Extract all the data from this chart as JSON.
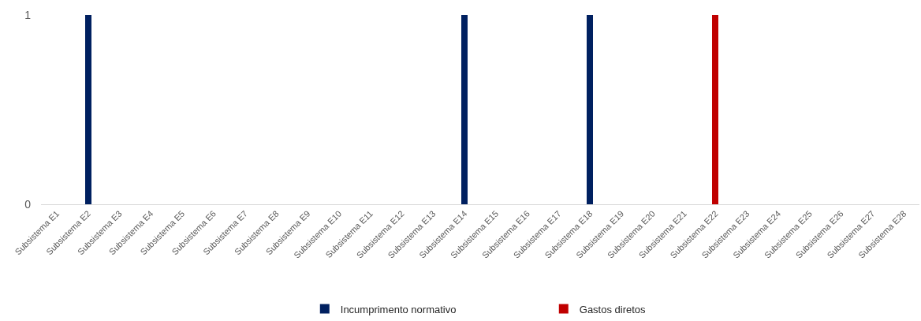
{
  "chart_data": {
    "type": "bar",
    "stacked": true,
    "legend": "bottom",
    "categories": [
      "Subsistema E1",
      "Subsistema E2",
      "Subsistema E3",
      "Subsistema E4",
      "Subsistema E5",
      "Subsistema E6",
      "Subsistema E7",
      "Subsistema E8",
      "Subsistema E9",
      "Subsistema E10",
      "Subsistema E11",
      "Subsistema E12",
      "Subsistema E13",
      "Subsistema E14",
      "Subsistema E15",
      "Subsistema E16",
      "Subsistema E17",
      "Subsistema E18",
      "Subsistema E19",
      "Subsistema E20",
      "Subsistema E21",
      "Subsistema E22",
      "Subsistema E23",
      "Subsistema E24",
      "Subsistema E25",
      "Subsistema E26",
      "Subsistema E27",
      "Subsistema E28"
    ],
    "series": [
      {
        "name": "Incumprimento normativo",
        "color": "#002060",
        "values": [
          0,
          1,
          0,
          0,
          0,
          0,
          0,
          0,
          0,
          0,
          0,
          0,
          0,
          1,
          0,
          0,
          0,
          1,
          0,
          0,
          0,
          0,
          0,
          0,
          0,
          0,
          0,
          0
        ]
      },
      {
        "name": "Gastos diretos",
        "color": "#c00000",
        "values": [
          0,
          0,
          0,
          0,
          0,
          0,
          0,
          0,
          0,
          0,
          0,
          0,
          0,
          0,
          0,
          0,
          0,
          0,
          0,
          0,
          0,
          1,
          0,
          0,
          0,
          0,
          0,
          0
        ]
      }
    ],
    "ylim": [
      0,
      1
    ],
    "yticks": [
      0,
      1
    ]
  }
}
